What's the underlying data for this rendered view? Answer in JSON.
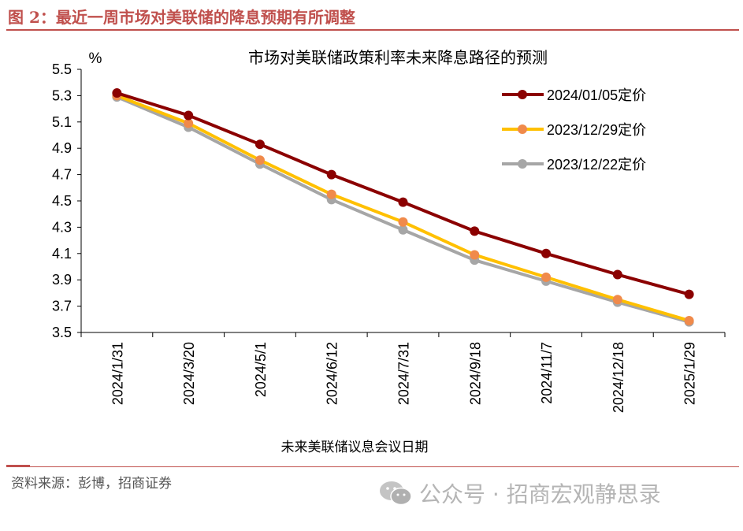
{
  "header": {
    "figure_title": "图 2：最近一周市场对美联储的降息预期有所调整"
  },
  "footer": {
    "source": "资料来源：彭博，招商证券",
    "watermark": "公众号 · 招商宏观静思录",
    "watermark_icon": "wechat-icon"
  },
  "chart_data": {
    "type": "line",
    "title": "市场对美联储政策利率未来降息路径的预测",
    "unit_label": "%",
    "xlabel": "未来美联储议息会议日期",
    "categories": [
      "2024/1/31",
      "2024/3/20",
      "2024/5/1",
      "2024/6/12",
      "2024/7/31",
      "2024/9/18",
      "2024/11/7",
      "2024/12/18",
      "2025/1/29"
    ],
    "ylim": [
      3.5,
      5.5
    ],
    "yticks": [
      "5.5",
      "5.3",
      "5.1",
      "4.9",
      "4.7",
      "4.5",
      "4.3",
      "4.1",
      "3.9",
      "3.7",
      "3.5"
    ],
    "grid": false,
    "legend_position": "top-right",
    "series": [
      {
        "name": "2024/01/05定价",
        "color": "#8b0000",
        "values": [
          5.32,
          5.15,
          4.93,
          4.7,
          4.49,
          4.27,
          4.1,
          3.94,
          3.79
        ]
      },
      {
        "name": "2023/12/29定价",
        "color": "#ffc000",
        "marker_color": "#f08a4b",
        "values": [
          5.3,
          5.09,
          4.81,
          4.55,
          4.34,
          4.09,
          3.92,
          3.75,
          3.59
        ]
      },
      {
        "name": "2023/12/22定价",
        "color": "#a6a6a6",
        "values": [
          5.29,
          5.06,
          4.78,
          4.51,
          4.28,
          4.05,
          3.89,
          3.73,
          3.58
        ]
      }
    ]
  }
}
